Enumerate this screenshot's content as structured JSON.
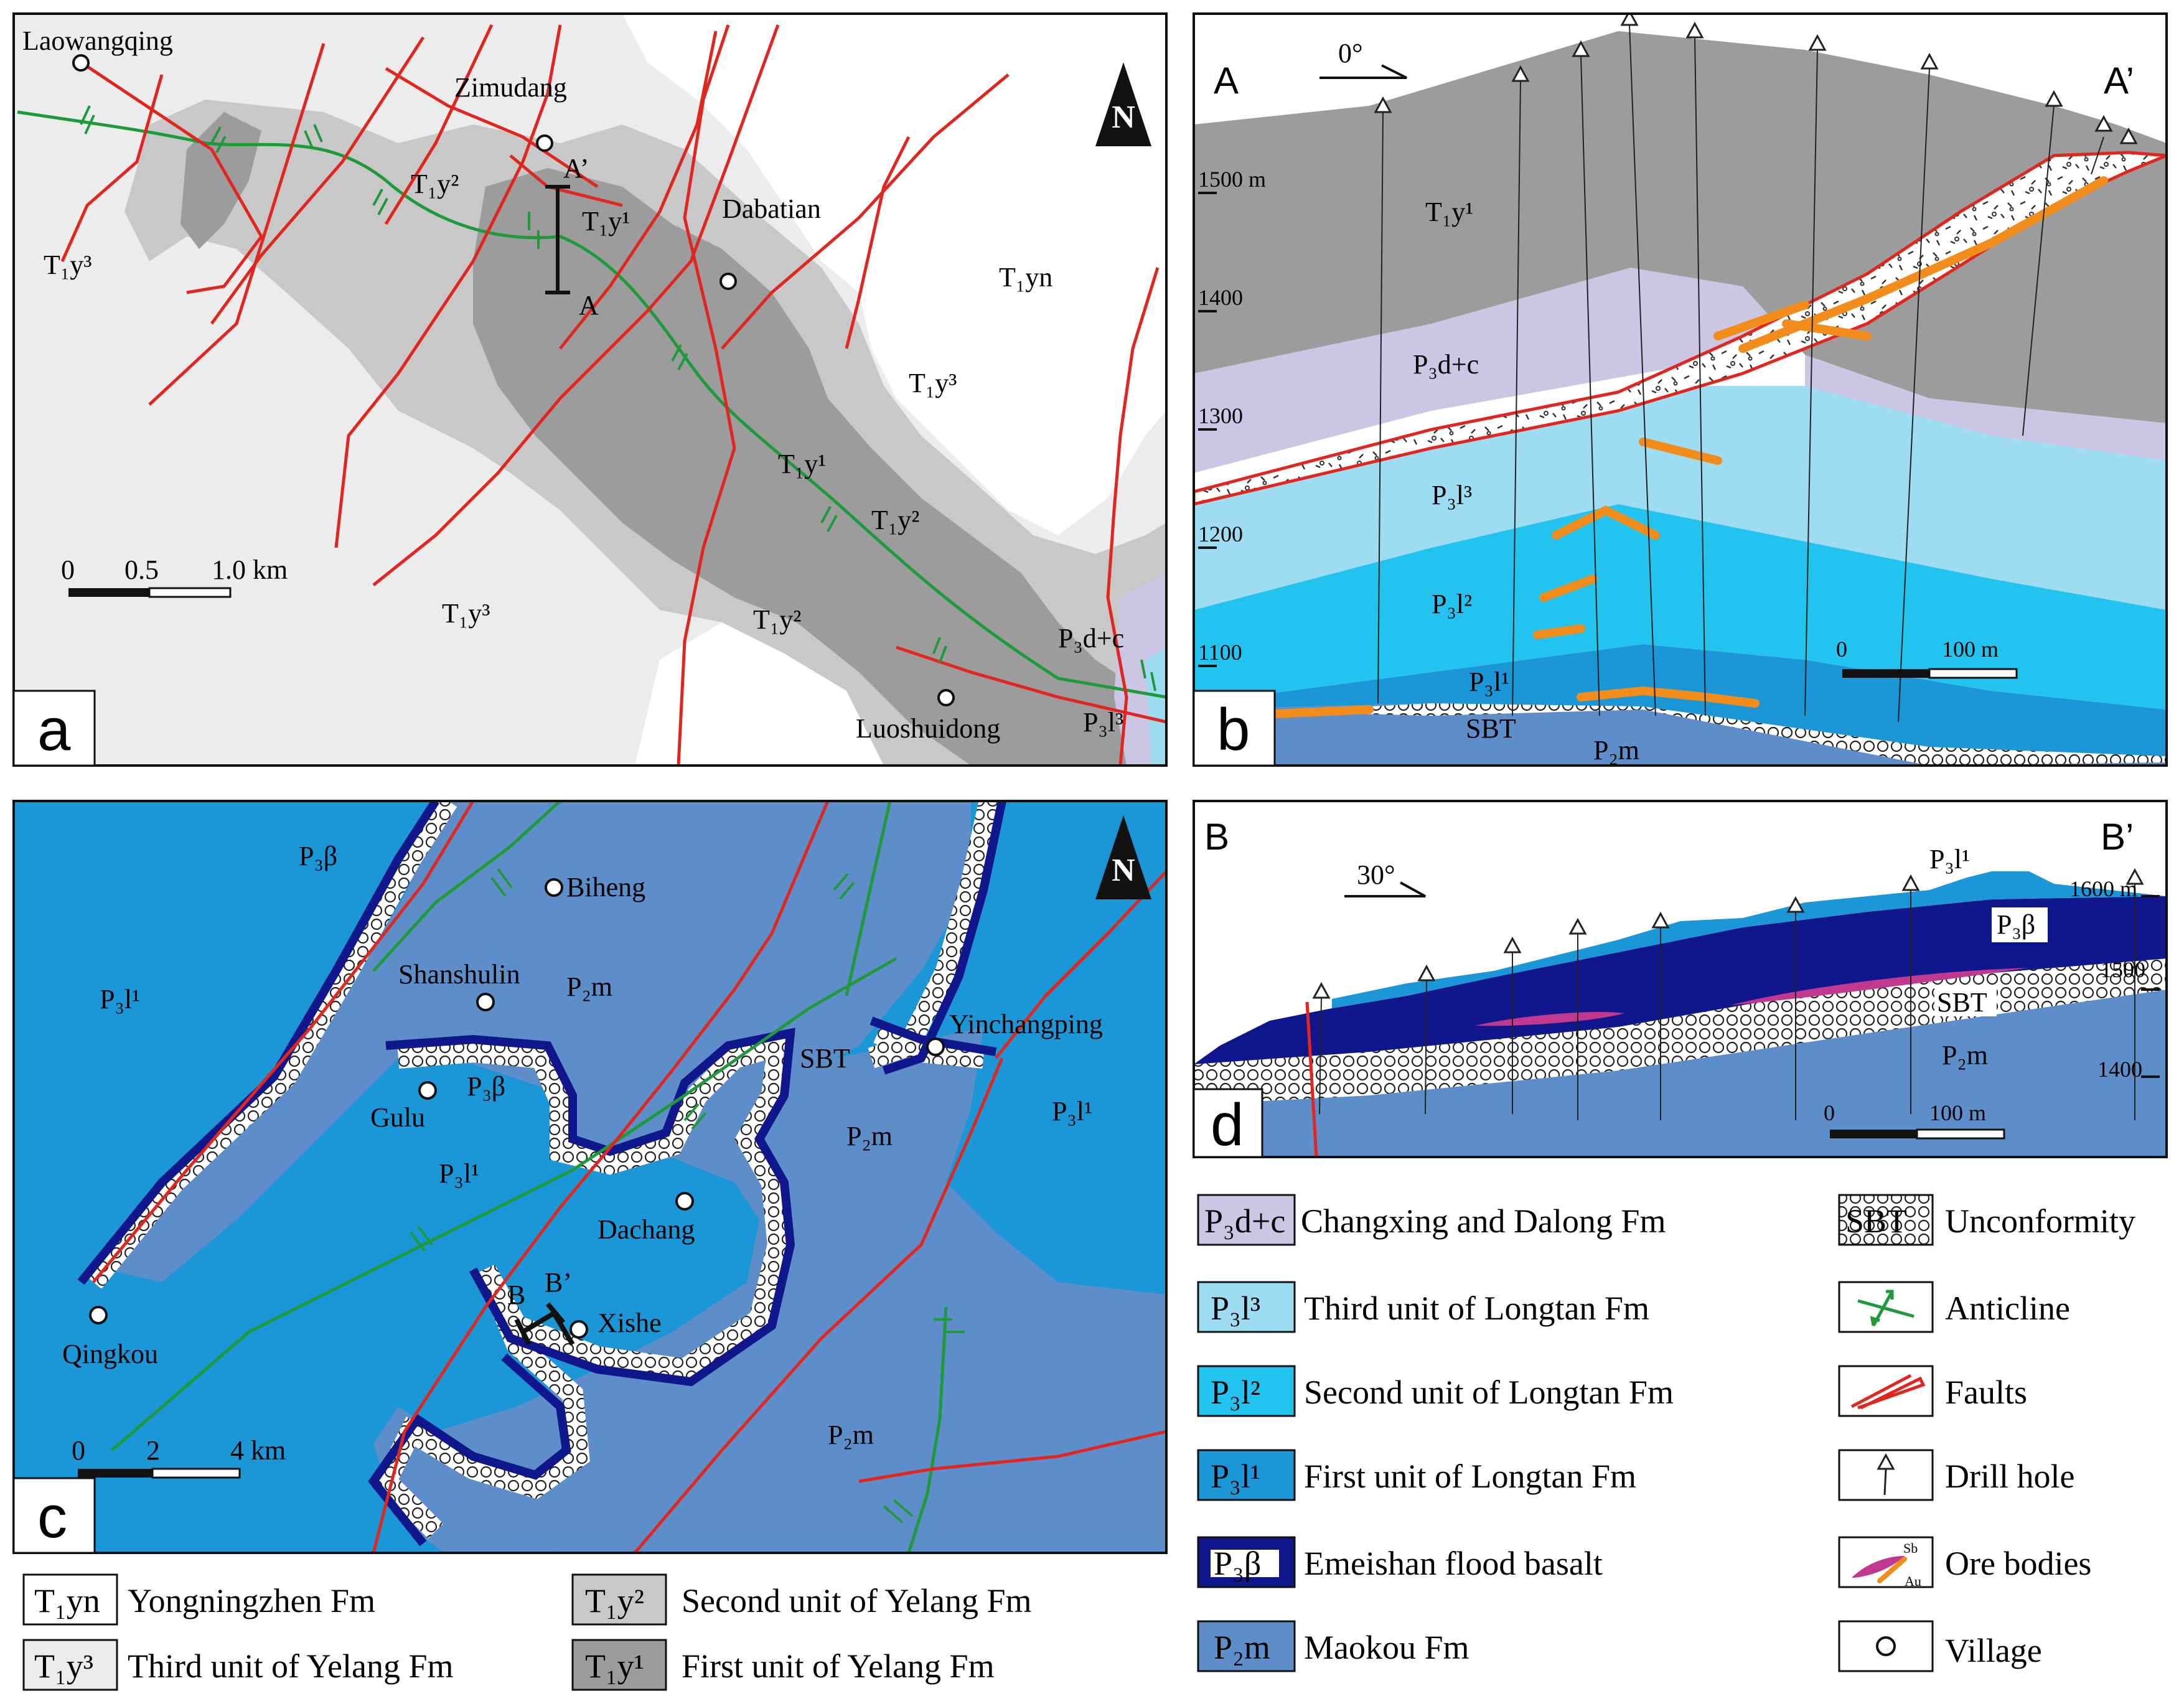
{
  "panels": {
    "a": {
      "letter": "a",
      "north": "N",
      "villages": [
        "Laowangqing",
        "Zimudang",
        "Dabatian",
        "Luoshuidong"
      ],
      "units": {
        "t1y3_w": "T₁y³",
        "t1y2_n": "T₁y²",
        "t1y1_n": "T₁y¹",
        "t1yn": "T₁yn",
        "t1y3_ne": "T₁y³",
        "t1y1_c": "T₁y¹",
        "t1y2_e": "T₁y²",
        "t1y3_s": "T₁y³",
        "t1y2_s": "T₁y²",
        "p3dc": "P₃d+c",
        "p3l3": "P₃l³"
      },
      "section_labels": {
        "top": "A’",
        "bottom": "A"
      },
      "scale": {
        "ticks": [
          "0",
          "0.5",
          "1.0 km"
        ]
      }
    },
    "b": {
      "letter": "b",
      "left": "A",
      "right": "A’",
      "dip": "0°",
      "elevations": [
        "1500 m",
        "1400",
        "1300",
        "1200",
        "1100"
      ],
      "units": {
        "t1y1": "T₁y¹",
        "p3dc": "P₃d+c",
        "p3l3": "P₃l³",
        "p3l2": "P₃l²",
        "p3l1": "P₃l¹",
        "sbt": "SBT",
        "p2m": "P₂m"
      },
      "scale": {
        "ticks": [
          "0",
          "100 m"
        ]
      }
    },
    "c": {
      "letter": "c",
      "north": "N",
      "villages": [
        "Biheng",
        "Shanshulin",
        "Yinchangping",
        "Gulu",
        "Dachang",
        "Xishe",
        "Qingkou"
      ],
      "units": {
        "p3beta_nw": "P₃β",
        "p3l1_w": "P₃l¹",
        "p2m_n": "P₂m",
        "p3beta_c": "P₃β",
        "sbt": "SBT",
        "p3l1_c": "P₃l¹",
        "p2m_e": "P₂m",
        "p3l1_e": "P₃l¹",
        "p2m_s": "P₂m"
      },
      "section_labels": {
        "b": "B",
        "b_prime": "B’"
      },
      "scale": {
        "ticks": [
          "0",
          "2",
          "4 km"
        ]
      }
    },
    "d": {
      "letter": "d",
      "left": "B",
      "right": "B’",
      "dip": "30°",
      "elevations": [
        "1600 m",
        "1500",
        "1400"
      ],
      "units": {
        "p3l1": "P₃l¹",
        "p3beta": "P₃β",
        "sbt": "SBT",
        "p2m": "P₂m"
      },
      "scale": {
        "ticks": [
          "0",
          "100 m"
        ]
      }
    }
  },
  "legend_bottom": [
    {
      "code": "T₁yn",
      "label": "Yongningzhen Fm",
      "color": "#ffffff"
    },
    {
      "code": "T₁y²",
      "label": "Second unit of Yelang Fm",
      "color": "#c8c8c8"
    },
    {
      "code": "T₁y³",
      "label": "Third unit of Yelang Fm",
      "color": "#ececec"
    },
    {
      "code": "T₁y¹",
      "label": "First unit of Yelang Fm",
      "color": "#9c9c9c"
    }
  ],
  "legend_right_units": [
    {
      "code": "P₃d+c",
      "label": "Changxing and Dalong Fm",
      "color": "#cbc6e4"
    },
    {
      "code": "P₃l³",
      "label": "Third unit of Longtan Fm",
      "color": "#9ddcf1"
    },
    {
      "code": "P₃l²",
      "label": "Second unit of Longtan Fm",
      "color": "#22c3ee"
    },
    {
      "code": "P₃l¹",
      "label": "First unit of Longtan Fm",
      "color": "#1b96d6"
    },
    {
      "code": "P₃β",
      "label": "Emeishan flood basalt",
      "color": "#10168c"
    },
    {
      "code": "P₂m",
      "label": "Maokou Fm",
      "color": "#5e8ec9"
    }
  ],
  "legend_right_symbols": [
    {
      "code": "SBT",
      "label": "Unconformity",
      "icon": "sbt-pattern-icon"
    },
    {
      "label": "Anticline",
      "icon": "anticline-icon"
    },
    {
      "label": "Faults",
      "icon": "fault-icon"
    },
    {
      "label": "Drill hole",
      "icon": "drill-hole-icon"
    },
    {
      "label": "Ore bodies",
      "icon": "ore-body-icon",
      "sub": [
        "Sb",
        "Au"
      ]
    },
    {
      "label": "Village",
      "icon": "village-icon"
    }
  ],
  "colors": {
    "t1yn": "#ffffff",
    "t1y3": "#ececec",
    "t1y2": "#c8c8c8",
    "t1y1": "#9c9c9c",
    "p3dc": "#cbc6e4",
    "p3l3": "#9ddcf1",
    "p3l2": "#22c3ee",
    "p3l1": "#1b96d6",
    "p3beta": "#10168c",
    "p2m": "#5e8ec9",
    "fault": "#e0261f",
    "anticline": "#1f9a3a",
    "ore_au": "#f28c1a",
    "ore_sb": "#c0388f"
  }
}
